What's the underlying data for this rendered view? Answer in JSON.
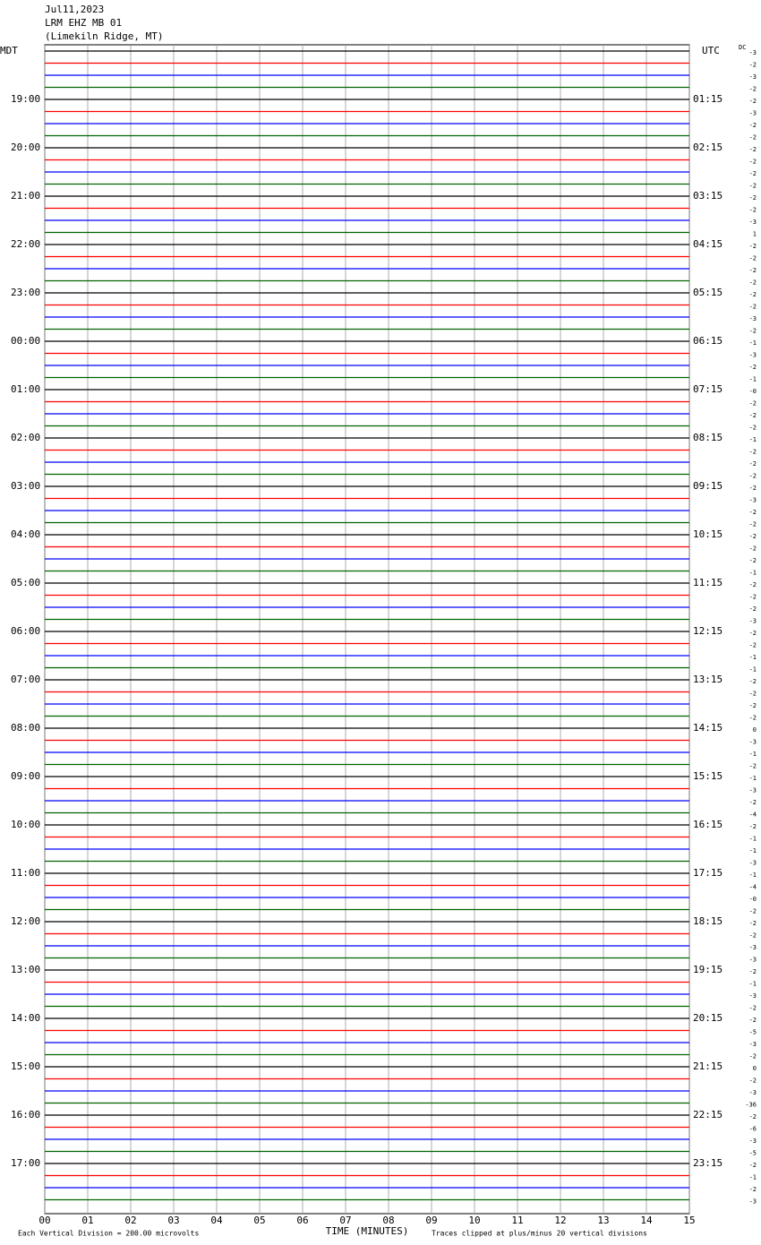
{
  "chart_data": {
    "type": "helicorder",
    "title": [
      "Jul11,2023",
      "LRM EHZ MB 01",
      "(Limekiln Ridge, MT)"
    ],
    "left_label": "MDT",
    "right_label": "UTC",
    "dc_label": "DC",
    "left_times": [
      "19:00",
      "20:00",
      "21:00",
      "22:00",
      "23:00",
      "00:00",
      "01:00",
      "02:00",
      "03:00",
      "04:00",
      "05:00",
      "06:00",
      "07:00",
      "08:00",
      "09:00",
      "10:00",
      "11:00",
      "12:00",
      "13:00",
      "14:00",
      "15:00",
      "16:00",
      "17:00"
    ],
    "right_times": [
      "01:15",
      "02:15",
      "03:15",
      "04:15",
      "05:15",
      "06:15",
      "07:15",
      "08:15",
      "09:15",
      "10:15",
      "11:15",
      "12:15",
      "13:15",
      "14:15",
      "15:15",
      "16:15",
      "17:15",
      "18:15",
      "19:15",
      "20:15",
      "21:15",
      "22:15",
      "23:15"
    ],
    "dc_offsets": [
      "-3",
      "-2",
      "-3",
      "-2",
      "-2",
      "-3",
      "-2",
      "-2",
      "-2",
      "-2",
      "-2",
      "-2",
      "-2",
      "-2",
      "-3",
      "1",
      "-2",
      "-2",
      "-2",
      "-2",
      "-2",
      "-2",
      "-3",
      "-2",
      "-1",
      "-3",
      "-2",
      "-1",
      "-0",
      "-2",
      "-2",
      "-2",
      "-1",
      "-2",
      "-2",
      "-2",
      "-2",
      "-3",
      "-2",
      "-2",
      "-2",
      "-2",
      "-2",
      "-1",
      "-2",
      "-2",
      "-2",
      "-3",
      "-2",
      "-2",
      "-1",
      "-1",
      "-2",
      "-2",
      "-2",
      "-2",
      "0",
      "-3",
      "-1",
      "-2",
      "-1",
      "-3",
      "-2",
      "-4",
      "-2",
      "-1",
      "-1",
      "-3",
      "-1",
      "-4",
      "-0",
      "-2",
      "-2",
      "-2",
      "-3",
      "-3",
      "-2",
      "-1",
      "-3",
      "-2",
      "-2",
      "-5",
      "-3",
      "-2",
      "0",
      "-2",
      "-3",
      "-36",
      "-2",
      "-6",
      "-3",
      "-5",
      "-2",
      "-1",
      "-2",
      "-3"
    ],
    "trace_colors": [
      "#000000",
      "#ff0000",
      "#0000ff",
      "#006400"
    ],
    "xlabel": "TIME (MINUTES)",
    "xlim": [
      0,
      15
    ],
    "xticks": [
      {
        "value": 0,
        "label": "00"
      },
      {
        "value": 1,
        "label": "01"
      },
      {
        "value": 2,
        "label": "02"
      },
      {
        "value": 3,
        "label": "03"
      },
      {
        "value": 4,
        "label": "04"
      },
      {
        "value": 5,
        "label": "05"
      },
      {
        "value": 6,
        "label": "06"
      },
      {
        "value": 7,
        "label": "07"
      },
      {
        "value": 8,
        "label": "08"
      },
      {
        "value": 9,
        "label": "09"
      },
      10,
      11,
      12,
      13,
      14,
      15
    ],
    "grid": true,
    "footnote_left": "Each Vertical Division =  200.00 microvolts",
    "footnote_right": "Traces clipped at plus/minus 20 vertical divisions"
  }
}
